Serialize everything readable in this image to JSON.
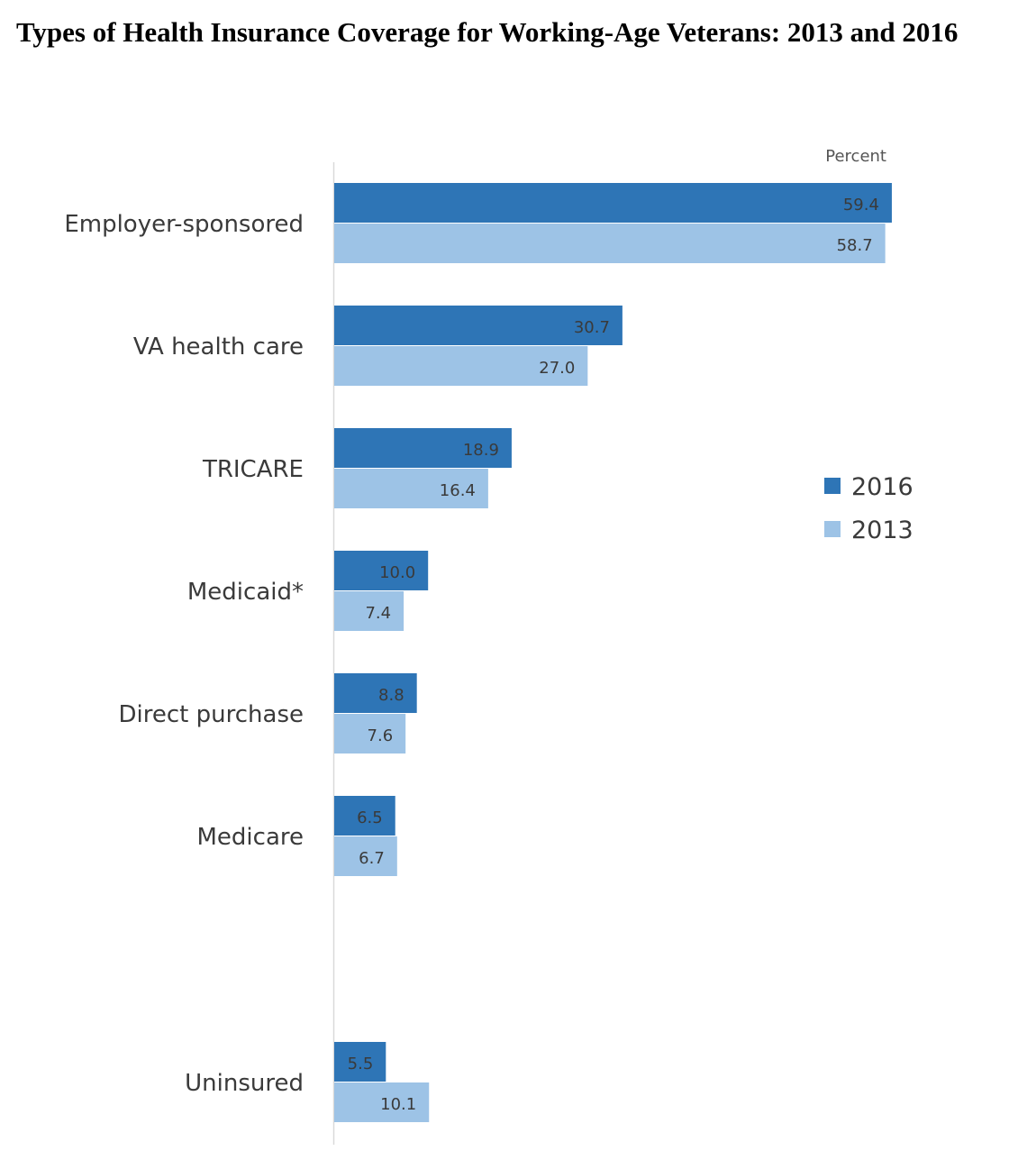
{
  "chart_data": {
    "type": "bar",
    "orientation": "horizontal",
    "title": "Types of Health Insurance Coverage for Working-Age Veterans: 2013 and 2016",
    "unit_label": "Percent",
    "categories": [
      "Employer-sponsored",
      "VA health care",
      "TRICARE",
      "Medicaid*",
      "Direct purchase",
      "Medicare",
      "Uninsured"
    ],
    "series": [
      {
        "name": "2016",
        "color": "#2E75B6",
        "values": [
          59.4,
          30.7,
          18.9,
          10.0,
          8.8,
          6.5,
          5.5
        ],
        "labels": [
          "59.4",
          "30.7",
          "18.9",
          "10.0",
          "8.8",
          "6.5",
          "5.5"
        ]
      },
      {
        "name": "2013",
        "color": "#9DC3E6",
        "values": [
          58.7,
          27.0,
          16.4,
          7.4,
          7.6,
          6.7,
          10.1
        ],
        "labels": [
          "58.7",
          "27.0",
          "16.4",
          "7.4",
          "7.6",
          "6.7",
          "10.1"
        ]
      }
    ],
    "xlim": [
      0,
      60
    ],
    "grid": false,
    "legend": "right"
  }
}
